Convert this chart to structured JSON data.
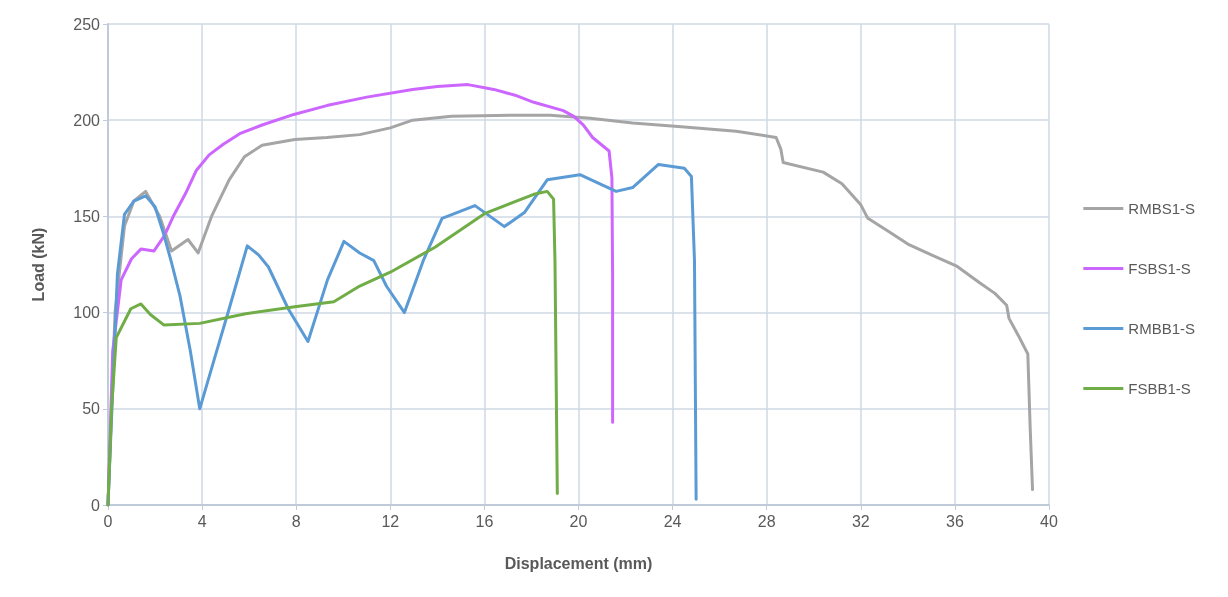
{
  "chart_data": {
    "type": "line",
    "xlabel": "Displacement (mm)",
    "ylabel": "Load (kN)",
    "xlim": [
      0,
      40
    ],
    "xticks": [
      0,
      4,
      8,
      12,
      16,
      20,
      24,
      28,
      32,
      36,
      40
    ],
    "ylim": [
      0,
      250
    ],
    "yticks": [
      0,
      50,
      100,
      150,
      200,
      250
    ],
    "grid": true,
    "legend": "right",
    "marker": "none",
    "line_style": "solid",
    "series": [
      {
        "name": "RMBS1-S",
        "color": "#a5a5a5",
        "x": [
          0,
          0.3,
          0.7,
          1.1,
          1.6,
          2.2,
          2.7,
          3.4,
          3.83,
          4.4,
          5.15,
          5.8,
          6.55,
          7.94,
          9.3,
          10.7,
          12.0,
          12.95,
          14.6,
          16.5,
          18.8,
          20.5,
          22.3,
          24.5,
          26.7,
          28.4,
          28.6,
          28.7,
          30.4,
          31.2,
          32.0,
          32.3,
          33.2,
          34.0,
          35.0,
          36.1,
          37.05,
          37.7,
          38.2,
          38.3,
          38.7,
          39.1,
          39.2,
          39.3
        ],
        "values": [
          0,
          100,
          145,
          158,
          163,
          150,
          132,
          138,
          131,
          150,
          169,
          181,
          187,
          190,
          191,
          192.5,
          196,
          200,
          202,
          202.5,
          202.6,
          201,
          198.6,
          196.5,
          194.3,
          191,
          185,
          178,
          173,
          167,
          156,
          149,
          142,
          135.6,
          130,
          124,
          115.5,
          110,
          103.8,
          97,
          88,
          78.5,
          40,
          8
        ]
      },
      {
        "name": "FSBS1-S",
        "color": "#cc66ff",
        "x": [
          0,
          0.2,
          0.56,
          1.0,
          1.4,
          1.95,
          2.4,
          2.8,
          3.3,
          3.76,
          4.3,
          4.9,
          5.6,
          6.55,
          7.9,
          9.3,
          11.0,
          12.95,
          14.0,
          15.3,
          16.4,
          17.3,
          18.1,
          19.35,
          19.8,
          20.2,
          20.6,
          21.3,
          21.42,
          21.45,
          21.45
        ],
        "values": [
          0,
          80,
          117,
          128,
          133,
          132,
          140,
          150.6,
          162,
          174,
          182,
          187.5,
          193,
          197.5,
          203,
          207.6,
          212,
          216,
          217.5,
          218.5,
          216,
          213,
          209.3,
          205,
          202,
          197.6,
          191,
          184,
          170,
          120,
          43
        ]
      },
      {
        "name": "RMBB1-S",
        "color": "#5b9bd5",
        "x": [
          0,
          0.2,
          0.4,
          0.7,
          1.1,
          1.6,
          2.0,
          2.37,
          2.7,
          3.06,
          3.5,
          3.9,
          4.5,
          5.15,
          5.92,
          6.4,
          6.82,
          7.66,
          8.5,
          9.33,
          10.03,
          10.7,
          11.3,
          11.84,
          12.6,
          13.4,
          14.2,
          15.6,
          16.85,
          17.7,
          18.67,
          20.06,
          21.6,
          22.3,
          23.4,
          24.5,
          24.8,
          24.93,
          25.0
        ],
        "values": [
          0,
          60,
          120,
          151,
          158,
          160.7,
          155,
          140.7,
          126,
          108.7,
          80,
          50,
          75,
          102,
          134.7,
          130,
          123.7,
          102,
          85,
          117,
          137,
          131,
          127,
          113.7,
          100,
          127,
          149,
          155.6,
          144.7,
          152,
          169,
          171.7,
          163,
          165,
          177,
          175,
          170.7,
          127,
          3
        ]
      },
      {
        "name": "FSBB1-S",
        "color": "#70ad47",
        "x": [
          0,
          0.15,
          0.35,
          0.97,
          1.4,
          1.8,
          2.37,
          3.9,
          5.85,
          7.94,
          9.6,
          10.7,
          12.0,
          13.9,
          16.0,
          18.1,
          18.67,
          18.94,
          19.0,
          19.1
        ],
        "values": [
          0,
          50,
          87,
          102,
          104.5,
          99,
          93.6,
          94.4,
          99.4,
          103,
          105.6,
          113.8,
          121,
          134,
          151.4,
          161.5,
          163,
          159,
          127,
          6
        ]
      }
    ]
  }
}
